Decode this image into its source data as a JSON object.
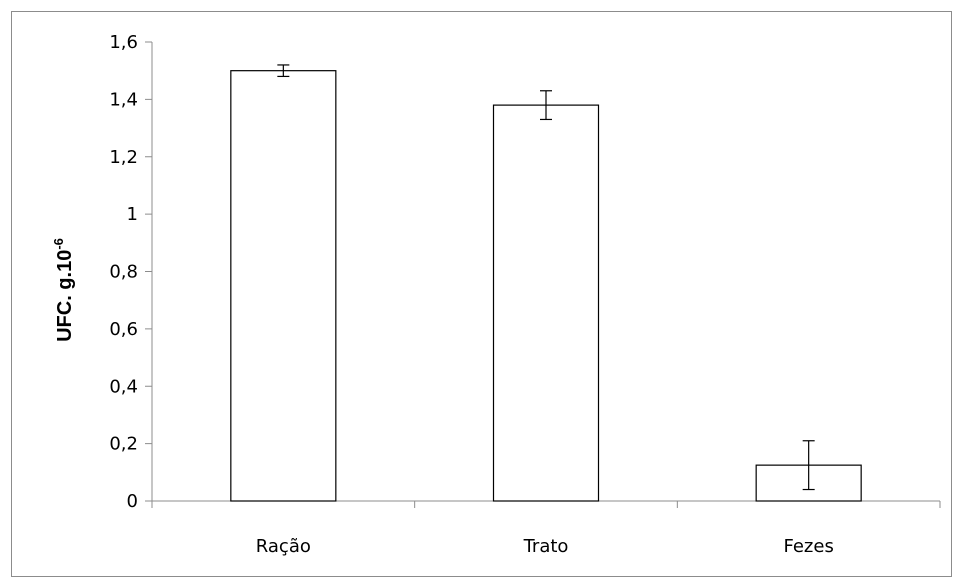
{
  "chart_data": {
    "type": "bar",
    "categories": [
      "Ração",
      "Trato",
      "Fezes"
    ],
    "values": [
      1.5,
      1.38,
      0.125
    ],
    "errors": [
      0.02,
      0.05,
      0.085
    ],
    "ylabel": "UFC. g.10",
    "ylabel_superscript": "-6",
    "xlabel": "",
    "ylim": [
      0,
      1.6
    ],
    "yticks": [
      0,
      0.2,
      0.4,
      0.6,
      0.8,
      1,
      1.2,
      1.4,
      1.6
    ],
    "ytick_labels": [
      "0",
      "0,2",
      "0,4",
      "0,6",
      "0,8",
      "1",
      "1,2",
      "1,4",
      "1,6"
    ],
    "grid": false,
    "legend": "none",
    "bar_fill": "#ffffff",
    "bar_stroke": "#000000"
  }
}
